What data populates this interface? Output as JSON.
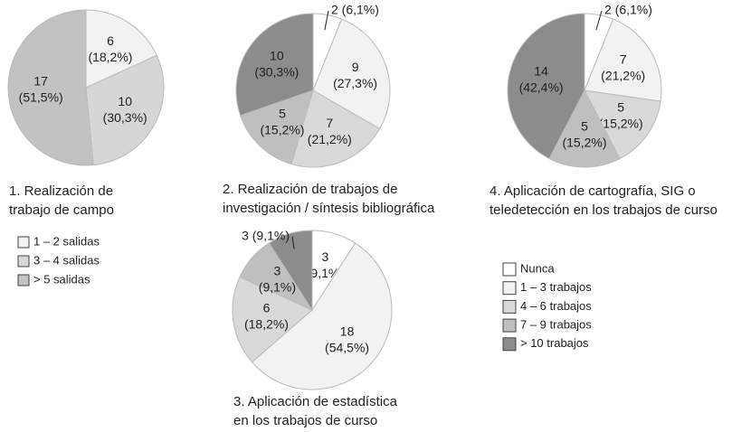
{
  "chart_data": [
    {
      "type": "pie",
      "title": [
        "1. Realización de",
        "trabajo de campo"
      ],
      "categories": [
        "1 – 2 salidas",
        "3 – 4 salidas",
        "> 5 salidas"
      ],
      "colors": [
        "#f2f2f2",
        "#d6d6d6",
        "#c2c2c2"
      ],
      "values": [
        6,
        10,
        17
      ],
      "value_labels": [
        "6 (18,2%)",
        "10 (30,3%)",
        "17 (51,5%)"
      ]
    },
    {
      "type": "pie",
      "title": [
        "2. Realización de trabajos de",
        "investigación / síntesis bibliográfica"
      ],
      "values": [
        2,
        9,
        7,
        5,
        10
      ],
      "value_labels": [
        "2 (6,1%)",
        "9 (27,3%)",
        "7 (21,2%)",
        "5 (15,2%)",
        "10 (30,3%)"
      ]
    },
    {
      "type": "pie",
      "title": [
        "3. Aplicación de estadística",
        "en los trabajos de curso"
      ],
      "values": [
        3,
        18,
        6,
        3,
        3
      ],
      "value_labels": [
        "3 (9,1%)",
        "18 (54,5%)",
        "6 (18,2%)",
        "3 (9,1%)",
        "3 (9,1%)"
      ]
    },
    {
      "type": "pie",
      "title": [
        "4. Aplicación de cartografía, SIG o",
        "teledetección en los trabajos de curso"
      ],
      "values": [
        2,
        7,
        5,
        5,
        14
      ],
      "value_labels": [
        "2 (6,1%)",
        "7 (21,2%)",
        "5 (15,2%)",
        "5 (15,2%)",
        "14 (42,4%)"
      ]
    }
  ],
  "legend": {
    "categories": [
      "Nunca",
      "1 – 3 trabajos",
      "4 – 6 trabajos",
      "7 – 9 trabajos",
      "> 10 trabajos"
    ],
    "colors": [
      "#ffffff",
      "#f2f2f2",
      "#d9d9d9",
      "#bfbfbf",
      "#8c8c8c"
    ]
  }
}
